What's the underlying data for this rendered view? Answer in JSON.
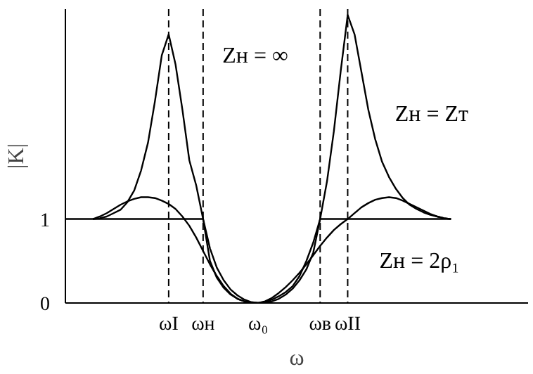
{
  "chart_data": {
    "type": "line",
    "xlabel": "ω",
    "ylabel": "|K|",
    "categories": [
      null,
      null,
      null,
      null,
      null,
      null,
      null,
      null,
      null,
      null,
      null,
      null,
      null,
      null,
      null,
      "ωI",
      null,
      null,
      null,
      null,
      "ωн",
      null,
      null,
      null,
      null,
      null,
      null,
      null,
      "ω₀",
      null,
      null,
      null,
      null,
      null,
      null,
      null,
      null,
      "ωв",
      null,
      null,
      null,
      "ωII",
      null,
      null,
      null,
      null,
      null,
      null,
      null,
      null,
      null,
      null,
      null,
      null,
      null,
      null,
      null
    ],
    "ylim": [
      0,
      3.5
    ],
    "yticks": [
      0,
      1
    ],
    "grid": false,
    "marker": "none",
    "line_style": "solid",
    "series": [
      {
        "color": "#000000",
        "values": [
          null,
          null,
          null,
          null,
          1.0,
          1.01,
          1.03,
          1.07,
          1.11,
          1.2,
          1.34,
          1.58,
          1.91,
          2.4,
          2.95,
          3.2,
          2.84,
          2.3,
          1.7,
          1.4,
          1.0,
          0.65,
          0.42,
          0.27,
          0.16,
          0.09,
          0.04,
          0.01,
          0,
          0.01,
          0.04,
          0.08,
          0.13,
          0.2,
          0.32,
          0.5,
          0.72,
          1.0,
          1.45,
          2.05,
          2.77,
          3.43,
          3.2,
          2.75,
          2.3,
          1.95,
          1.68,
          1.5,
          1.36,
          1.25,
          1.17,
          1.12,
          1.08,
          1.05,
          1.03,
          1.01,
          1.0
        ]
      },
      {
        "color": "#000000",
        "values": [
          1,
          1,
          1,
          1,
          1,
          1,
          1,
          1,
          1,
          1,
          1,
          1,
          1,
          1,
          1,
          1,
          1,
          1,
          1,
          1,
          1,
          0.5,
          0.3,
          0.18,
          0.1,
          0.05,
          0.02,
          0.005,
          0,
          0.005,
          0.02,
          0.05,
          0.1,
          0.17,
          0.27,
          0.4,
          0.6,
          1,
          1,
          1,
          1,
          1,
          1,
          1,
          1,
          1,
          1,
          1,
          1,
          1,
          1,
          1,
          1,
          1,
          1,
          1,
          1
        ]
      },
      {
        "color": "#000000",
        "values": [
          null,
          null,
          null,
          null,
          1.0,
          1.03,
          1.07,
          1.12,
          1.17,
          1.21,
          1.24,
          1.26,
          1.26,
          1.25,
          1.22,
          1.18,
          1.12,
          1.03,
          0.92,
          0.78,
          0.62,
          0.46,
          0.32,
          0.2,
          0.11,
          0.05,
          0.02,
          0.005,
          0,
          0.02,
          0.06,
          0.12,
          0.19,
          0.27,
          0.36,
          0.46,
          0.57,
          0.68,
          0.78,
          0.87,
          0.94,
          1.0,
          1.07,
          1.14,
          1.19,
          1.23,
          1.25,
          1.26,
          1.25,
          1.22,
          1.18,
          1.14,
          1.1,
          1.06,
          1.03,
          1.01,
          1.0
        ]
      }
    ],
    "ref_lines": [
      {
        "axis": "x",
        "value": "ωI",
        "line_style": "dashed",
        "color": "#000000"
      },
      {
        "axis": "x",
        "value": "ωн",
        "line_style": "dashed",
        "color": "#000000"
      },
      {
        "axis": "x",
        "value": "ωв",
        "line_style": "dashed",
        "color": "#000000"
      },
      {
        "axis": "x",
        "value": "ωII",
        "line_style": "dashed",
        "color": "#000000"
      }
    ],
    "annotations": [
      "Zн = ∞",
      "Zн = Zт",
      "Zн = 2ρ₁"
    ]
  }
}
